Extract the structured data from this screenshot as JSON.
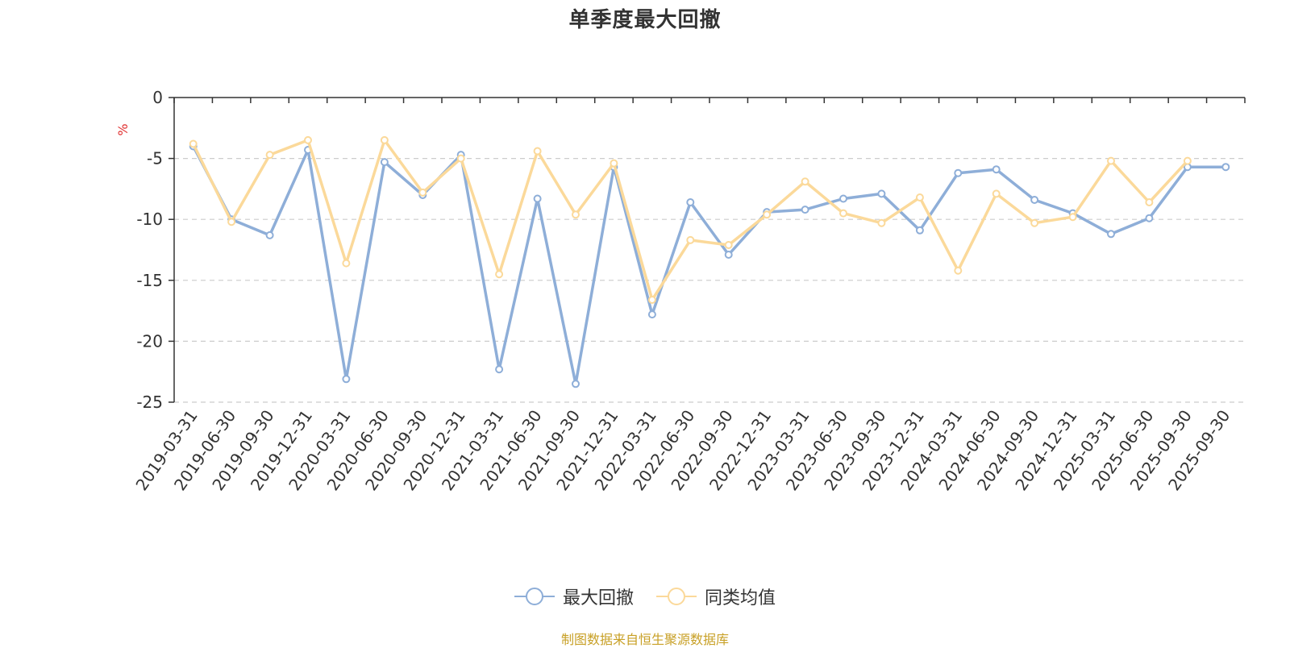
{
  "chart_data": {
    "type": "line",
    "title": "单季度最大回撤",
    "ylabel": "%",
    "ylim": [
      -25,
      0
    ],
    "yticks": [
      0,
      -5,
      -10,
      -15,
      -20,
      -25
    ],
    "grid": true,
    "legend_position": "bottom",
    "categories": [
      "2019-03-31",
      "2019-06-30",
      "2019-09-30",
      "2019-12-31",
      "2020-03-31",
      "2020-06-30",
      "2020-09-30",
      "2020-12-31",
      "2021-03-31",
      "2021-06-30",
      "2021-09-30",
      "2021-12-31",
      "2022-03-31",
      "2022-06-30",
      "2022-09-30",
      "2022-12-31",
      "2023-03-31",
      "2023-06-30",
      "2023-09-30",
      "2023-12-31",
      "2024-03-31",
      "2024-06-30",
      "2024-09-30",
      "2024-12-31",
      "2025-03-31",
      "2025-06-30",
      "2025-09-30",
      "2025-09-30"
    ],
    "series": [
      {
        "name": "最大回撤",
        "color": "#8eaed8",
        "values": [
          -4.0,
          -10.0,
          -11.3,
          -4.3,
          -23.1,
          -5.3,
          -8.0,
          -4.7,
          -22.3,
          -8.3,
          -23.5,
          -5.7,
          -17.8,
          -8.6,
          -12.9,
          -9.4,
          -9.2,
          -8.3,
          -7.9,
          -10.9,
          -6.2,
          -5.9,
          -8.4,
          -9.5,
          -11.2,
          -9.9,
          -5.7,
          -5.7
        ]
      },
      {
        "name": "同类均值",
        "color": "#fbd99a",
        "values": [
          -3.8,
          -10.2,
          -4.7,
          -3.5,
          -13.6,
          -3.5,
          -7.8,
          -5.0,
          -14.5,
          -4.4,
          -9.6,
          -5.4,
          -16.6,
          -11.7,
          -12.1,
          -9.6,
          -6.9,
          -9.5,
          -10.3,
          -8.2,
          -14.2,
          -7.9,
          -10.3,
          -9.8,
          -5.2,
          -8.6,
          -5.2,
          null
        ]
      }
    ]
  },
  "footer": {
    "source": "制图数据来自恒生聚源数据库"
  }
}
